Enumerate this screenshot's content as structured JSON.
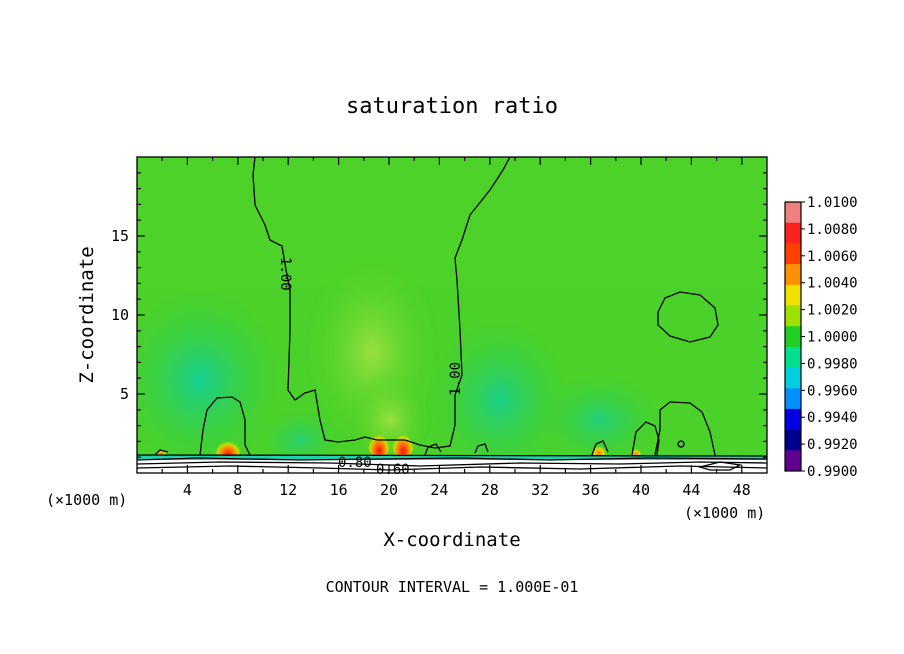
{
  "chart_data": {
    "type": "heatmap",
    "title": "saturation ratio",
    "xlabel": "X-coordinate",
    "ylabel": "Z-coordinate",
    "x_unit_left": "(×1000 m)",
    "x_unit_right": "(×1000 m)",
    "footer": "CONTOUR INTERVAL = 1.000E-01",
    "xlim": [
      0,
      50
    ],
    "ylim": [
      0,
      20
    ],
    "x_ticks": [
      4,
      8,
      12,
      16,
      20,
      24,
      28,
      32,
      36,
      40,
      44,
      48
    ],
    "y_ticks": [
      5,
      10,
      15
    ],
    "colorbar": {
      "labels": [
        "1.0100",
        "1.0080",
        "1.0060",
        "1.0040",
        "1.0020",
        "1.0000",
        "0.9980",
        "0.9960",
        "0.9940",
        "0.9920",
        "0.9900"
      ],
      "colors": [
        "#f08080",
        "#ff2020",
        "#ff4000",
        "#ff9000",
        "#f0e000",
        "#a0e000",
        "#20d020",
        "#00e090",
        "#00d0e0",
        "#0090ff",
        "#0000e0",
        "#000090",
        "#600090"
      ]
    },
    "contour_labels": [
      {
        "text": "1.00",
        "x": 12,
        "z": 12.5
      },
      {
        "text": "1.00",
        "x": 25.5,
        "z": 5.5
      },
      {
        "text": "0.80",
        "x": 17.3,
        "z": 0.6
      },
      {
        "text": "0.60",
        "x": 20.0,
        "z": 0.3
      }
    ],
    "features": [
      {
        "kind": "peak",
        "x": 7.5,
        "z": 1.5,
        "value": 1.008
      },
      {
        "kind": "peak",
        "x": 19.0,
        "z": 1.5,
        "value": 1.008
      },
      {
        "kind": "peak",
        "x": 21.0,
        "z": 1.5,
        "value": 1.007
      },
      {
        "kind": "peak",
        "x": 36.5,
        "z": 1.2,
        "value": 1.004
      },
      {
        "kind": "peak",
        "x": 39.5,
        "z": 1.2,
        "value": 1.003
      }
    ]
  }
}
